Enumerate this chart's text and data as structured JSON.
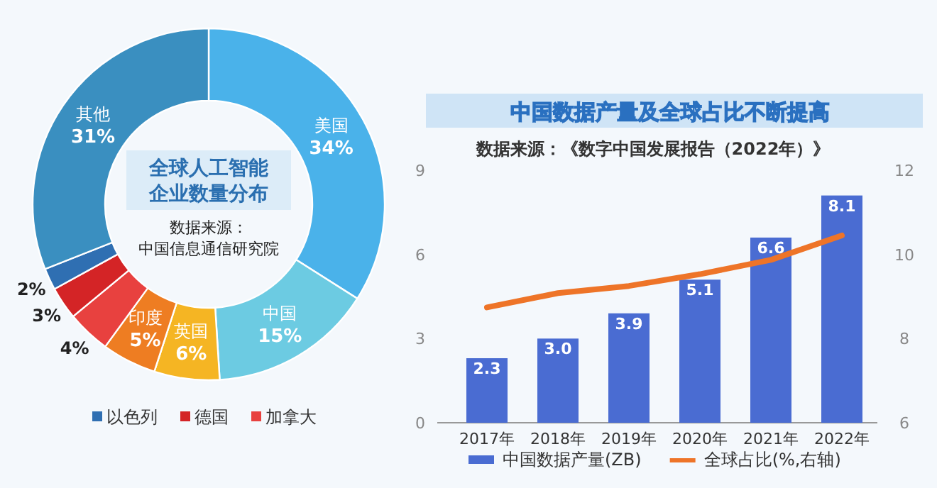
{
  "chart_data": [
    {
      "type": "donut",
      "title": "全球人工智能企业数量分布",
      "annotations": [
        "数据来源：",
        "中国信息通信研究院"
      ],
      "categories": [
        "美国",
        "中国",
        "英国",
        "印度",
        "加拿大",
        "德国",
        "以色列",
        "其他"
      ],
      "values": [
        34,
        15,
        6,
        5,
        4,
        3,
        2,
        31
      ],
      "value_labels": [
        "34%",
        "15%",
        "6%",
        "5%",
        "4%",
        "3%",
        "2%",
        "31%"
      ],
      "colors": [
        "#4ab2ea",
        "#6ccbe2",
        "#f5b523",
        "#ee7d22",
        "#e8413f",
        "#d42426",
        "#2f6fb2",
        "#3a8fc0"
      ],
      "legend": "bottom"
    },
    {
      "type": "bar",
      "title": "中国数据产量及全球占比不断提高",
      "subtitle": "数据来源：《数字中国发展报告（2022年）》",
      "categories": [
        "2017年",
        "2018年",
        "2019年",
        "2020年",
        "2021年",
        "2022年"
      ],
      "series": [
        {
          "name": "中国数据产量(ZB)",
          "color": "#4a6cd2",
          "values": [
            2.3,
            3.0,
            3.9,
            5.1,
            6.6,
            8.1
          ],
          "value_labels": [
            "2.3",
            "3.0",
            "3.9",
            "5.1",
            "6.6",
            "8.1"
          ]
        },
        {
          "name": "全球占比(%,右轴)",
          "type": "line",
          "axis": "y2",
          "color": "#ee7428",
          "values": [
            8.74,
            9.08,
            9.25,
            9.53,
            9.87,
            10.45
          ]
        }
      ],
      "ylim": [
        0,
        9
      ],
      "yticks": [
        0,
        3,
        6,
        9
      ],
      "y2lim": [
        6,
        12
      ],
      "y2ticks": [
        6,
        8,
        10,
        12
      ],
      "legend": "bottom"
    }
  ]
}
